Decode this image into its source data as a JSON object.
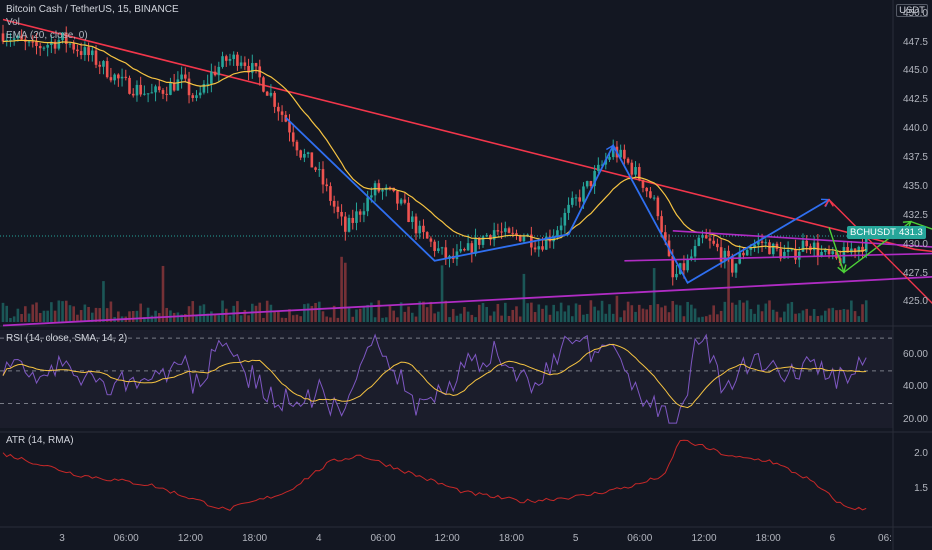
{
  "header": {
    "symbol_line": "Bitcoin Cash / TetherUS, 15, BINANCE",
    "vol": "Vol",
    "ema": "EMA (20, close, 0)",
    "currency": "USDT"
  },
  "price_badge": {
    "symbol": "BCHUSDT",
    "price": "431.3",
    "color": "#26a69a"
  },
  "panes": {
    "rsi_label": "RSI (14, close, SMA, 14, 2)",
    "atr_label": "ATR (14, RMA)"
  },
  "colors": {
    "background": "#131722",
    "up": "#26a69a",
    "down": "#ef5350",
    "ema": "#f5c342",
    "trend_red": "#f2364b",
    "trend_purple": "#b02cc4",
    "wave_blue": "#2f6ff0",
    "proj_green": "#4cd137",
    "proj_red": "#f2364b",
    "rsi_line": "#7e57c2",
    "rsi_ma": "#f5c342",
    "atr_line": "#c62828"
  },
  "chart_data": [
    {
      "type": "candlestick",
      "title": "Bitcoin Cash / TetherUS, 15, BINANCE",
      "y_axis_ticks": [
        "450.0",
        "447.5",
        "445.0",
        "442.5",
        "440.0",
        "437.5",
        "435.0",
        "432.5",
        "430.0",
        "427.5",
        "425.0"
      ],
      "ylim": [
        423.3,
        450.5
      ],
      "x_ticks": [
        "3",
        "06:00",
        "12:00",
        "18:00",
        "4",
        "06:00",
        "12:00",
        "18:00",
        "5",
        "06:00",
        "12:00",
        "18:00",
        "6",
        "06:"
      ],
      "path_points": [
        [
          0,
          448.3
        ],
        [
          8,
          447.0
        ],
        [
          16,
          447.8
        ],
        [
          24,
          446.2
        ],
        [
          32,
          444.0
        ],
        [
          40,
          443.0
        ],
        [
          48,
          444.2
        ],
        [
          52,
          442.4
        ],
        [
          56,
          444.8
        ],
        [
          60,
          446.0
        ],
        [
          64,
          446.2
        ],
        [
          68,
          444.8
        ],
        [
          72,
          443.0
        ],
        [
          76,
          440.8
        ],
        [
          80,
          438.0
        ],
        [
          84,
          436.6
        ],
        [
          88,
          434.0
        ],
        [
          92,
          431.2
        ],
        [
          96,
          433.0
        ],
        [
          100,
          434.8
        ],
        [
          104,
          434.4
        ],
        [
          108,
          433.0
        ],
        [
          112,
          431.0
        ],
        [
          116,
          429.8
        ],
        [
          120,
          428.6
        ],
        [
          124,
          429.2
        ],
        [
          128,
          430.4
        ],
        [
          132,
          431.3
        ],
        [
          136,
          430.6
        ],
        [
          140,
          430.9
        ],
        [
          144,
          430.0
        ],
        [
          148,
          431.0
        ],
        [
          152,
          433.0
        ],
        [
          156,
          434.6
        ],
        [
          160,
          436.4
        ],
        [
          164,
          438.2
        ],
        [
          168,
          437.0
        ],
        [
          172,
          435.4
        ],
        [
          176,
          433.0
        ],
        [
          180,
          427.0
        ],
        [
          184,
          428.4
        ],
        [
          188,
          430.5
        ],
        [
          192,
          429.6
        ],
        [
          196,
          428.0
        ],
        [
          200,
          429.8
        ],
        [
          204,
          430.2
        ],
        [
          208,
          429.4
        ],
        [
          212,
          429.0
        ],
        [
          216,
          430.4
        ],
        [
          220,
          429.2
        ],
        [
          224,
          428.6
        ],
        [
          228,
          429.6
        ],
        [
          232,
          430.2
        ]
      ],
      "ema_length": 20
    },
    {
      "type": "line",
      "title": "RSI (14, close, SMA, 14, 2)",
      "y_axis_ticks": [
        "60.00",
        "40.00",
        "20.00"
      ],
      "ylim": [
        15,
        75
      ],
      "levels": [
        70,
        50,
        30
      ]
    },
    {
      "type": "line",
      "title": "ATR (14, RMA)",
      "y_axis_ticks": [
        "2.0",
        "1.5"
      ],
      "ylim": [
        1.0,
        2.25
      ],
      "path_points": [
        [
          0,
          2.0
        ],
        [
          20,
          1.7
        ],
        [
          40,
          1.55
        ],
        [
          60,
          1.2
        ],
        [
          76,
          1.45
        ],
        [
          88,
          1.88
        ],
        [
          96,
          1.98
        ],
        [
          108,
          1.75
        ],
        [
          124,
          1.45
        ],
        [
          140,
          1.32
        ],
        [
          156,
          1.4
        ],
        [
          170,
          1.55
        ],
        [
          178,
          1.7
        ],
        [
          182,
          2.2
        ],
        [
          188,
          2.1
        ],
        [
          196,
          1.95
        ],
        [
          206,
          1.9
        ],
        [
          216,
          1.65
        ],
        [
          226,
          1.25
        ],
        [
          232,
          1.2
        ]
      ]
    }
  ],
  "drawings": {
    "red_resistance": [
      [
        0,
        449.5
      ],
      [
        245,
        429.6
      ],
      [
        297,
        427.6
      ]
    ],
    "purple_support": [
      [
        0,
        423.0
      ],
      [
        297,
        428.0
      ]
    ],
    "purple_mid": [
      [
        167,
        428.6
      ],
      [
        260,
        429.3
      ]
    ],
    "purple_upper": [
      [
        180,
        431.2
      ],
      [
        260,
        429.6
      ]
    ],
    "blue_waves": [
      [
        76,
        441.0
      ],
      [
        116,
        428.6
      ],
      [
        152,
        430.9
      ],
      [
        164,
        438.6
      ],
      [
        184,
        426.7
      ],
      [
        222,
        433.9
      ]
    ],
    "green_projection": [
      [
        222,
        431.5
      ],
      [
        226,
        427.6
      ],
      [
        244,
        432.0
      ],
      [
        274,
        428.6
      ]
    ],
    "red_projection": [
      [
        222,
        433.9
      ],
      [
        252,
        424.2
      ],
      [
        284,
        424.7
      ]
    ]
  }
}
